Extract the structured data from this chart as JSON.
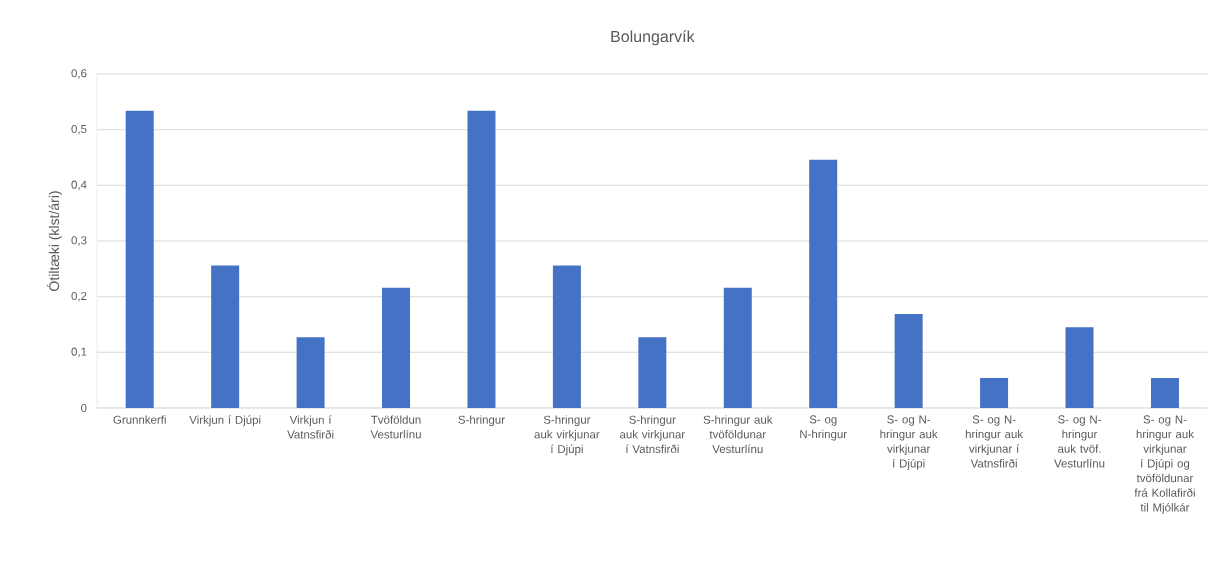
{
  "chart_data": {
    "type": "bar",
    "title": "Bolungarvík",
    "ylabel": "Ótiltæki (klst/ári)",
    "categories": [
      "Grunnkerfi",
      "Virkjun í Djúpi",
      "Virkjun í Vatnsfirði",
      "Tvöföldun Vesturlínu",
      "S-hringur",
      "S-hringur auk virkjunar í Djúpi",
      "S-hringur auk virkjunar í Vatnsfirði",
      "S-hringur auk tvöföldunar Vesturlínu",
      "S- og N-hringur",
      "S- og N-hringur auk virkjunar í Djúpi",
      "S- og N-hringur auk virkjunar í Vatnsfirði",
      "S- og N-hringur auk tvöf. Vesturlínu",
      "S- og N-hringur auk virkjunar í Djúpi og tvöföldunar frá Kollafirði til Mjólkár"
    ],
    "values": [
      0.534,
      0.256,
      0.127,
      0.216,
      0.534,
      0.256,
      0.127,
      0.216,
      0.446,
      0.169,
      0.054,
      0.145,
      0.054
    ],
    "color": "#4472c4",
    "ylim": [
      0,
      0.6
    ],
    "yticks": [
      0,
      {
        "value": 0.1,
        "label": "0,1"
      },
      {
        "value": 0.2,
        "label": "0,2"
      },
      {
        "value": 0.3,
        "label": "0,3"
      },
      {
        "value": 0.4,
        "label": "0,4"
      },
      {
        "value": 0.5,
        "label": "0,5"
      },
      {
        "value": 0.6,
        "label": "0,6"
      }
    ],
    "grid": "y"
  }
}
